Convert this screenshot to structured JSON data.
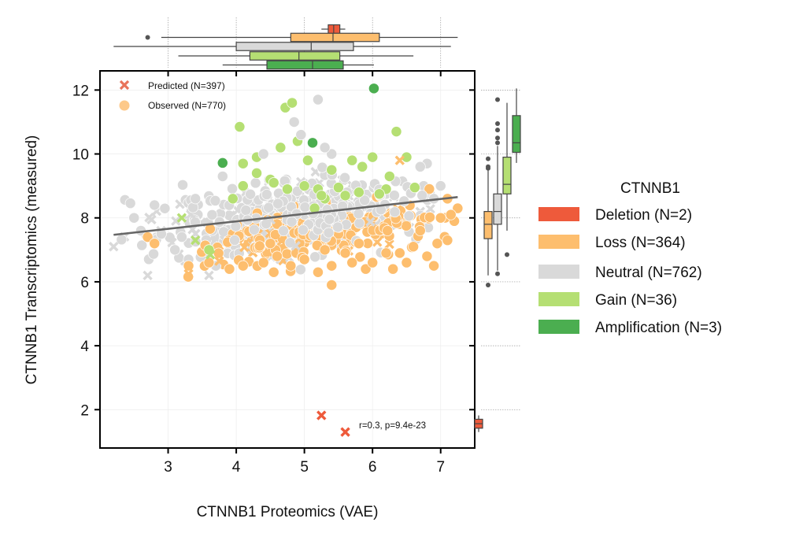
{
  "chart_data": {
    "type": "scatter",
    "xlabel": "CTNNB1 Proteomics (VAE)",
    "ylabel": "CTNNB1 Transcriptomics (measured)",
    "xlim": [
      2.0,
      7.5
    ],
    "ylim": [
      0.8,
      12.6
    ],
    "x_ticks": [
      "3",
      "4",
      "5",
      "6",
      "7"
    ],
    "y_ticks": [
      "2",
      "4",
      "6",
      "8",
      "10",
      "12"
    ],
    "grid": true,
    "scatter_legend": {
      "placement": "top-left",
      "entries": [
        {
          "label": "Predicted (N=397)",
          "marker": "x"
        },
        {
          "label": "Observed (N=770)",
          "marker": "circle"
        }
      ]
    },
    "annotation": "r=0.3, p=9.4e-23",
    "regression_line": {
      "x": [
        2.2,
        7.25
      ],
      "y": [
        7.47,
        8.65
      ],
      "color": "#666666"
    },
    "category_legend": {
      "title": "CTNNB1",
      "placement": "right",
      "entries": [
        {
          "label": "Deletion (N=2)",
          "color": "#EE5A3B"
        },
        {
          "label": "Loss (N=364)",
          "color": "#FDBE6E"
        },
        {
          "label": "Neutral (N=762)",
          "color": "#D9D9D9"
        },
        {
          "label": "Gain (N=36)",
          "color": "#B5DF73"
        },
        {
          "label": "Amplification (N=3)",
          "color": "#4BAE50"
        }
      ]
    },
    "categories": [
      "Deletion",
      "Loss",
      "Neutral",
      "Gain",
      "Amplification"
    ],
    "colors": {
      "Deletion": "#EE5A3B",
      "Loss": "#FDBE6E",
      "Neutral": "#D9D9D9",
      "Gain": "#B5DF73",
      "Amplification": "#4BAE50"
    },
    "series": [
      {
        "category": "Amplification",
        "points": [
          [
            3.8,
            9.72
          ],
          [
            5.12,
            10.35
          ],
          [
            6.02,
            12.05
          ]
        ]
      },
      {
        "category": "Gain",
        "points": [
          [
            4.05,
            10.85
          ],
          [
            4.72,
            11.45
          ],
          [
            4.82,
            11.6
          ],
          [
            4.65,
            10.2
          ],
          [
            4.9,
            10.4
          ],
          [
            5.05,
            9.8
          ],
          [
            4.3,
            9.9
          ],
          [
            4.1,
            9.7
          ],
          [
            4.5,
            9.2
          ],
          [
            4.55,
            9.1
          ],
          [
            4.1,
            9.0
          ],
          [
            5.0,
            9.0
          ],
          [
            5.2,
            8.9
          ],
          [
            5.3,
            8.6
          ],
          [
            5.6,
            8.7
          ],
          [
            5.8,
            8.8
          ],
          [
            6.0,
            9.9
          ],
          [
            6.2,
            8.9
          ],
          [
            6.35,
            10.7
          ],
          [
            6.5,
            9.9
          ],
          [
            5.4,
            9.5
          ],
          [
            5.7,
            9.8
          ],
          [
            5.15,
            8.3
          ],
          [
            5.5,
            8.95
          ],
          [
            5.85,
            9.6
          ],
          [
            6.1,
            8.75
          ],
          [
            6.25,
            9.3
          ],
          [
            6.62,
            8.95
          ],
          [
            4.75,
            8.9
          ],
          [
            4.3,
            9.4
          ],
          [
            5.25,
            8.7
          ],
          [
            3.95,
            8.6
          ],
          [
            3.6,
            7.0
          ]
        ]
      },
      {
        "category": "Neutral",
        "points": [
          [
            5.2,
            11.7
          ],
          [
            4.85,
            11.0
          ],
          [
            4.95,
            10.6
          ],
          [
            5.4,
            10.0
          ],
          [
            5.3,
            10.2
          ],
          [
            4.4,
            10.0
          ],
          [
            3.8,
            9.3
          ],
          [
            3.4,
            8.6
          ],
          [
            2.8,
            8.4
          ],
          [
            2.9,
            7.5
          ],
          [
            3.1,
            7.0
          ],
          [
            3.3,
            6.7
          ],
          [
            3.7,
            6.5
          ],
          [
            2.5,
            8.0
          ],
          [
            2.6,
            7.6
          ],
          [
            6.8,
            9.7
          ],
          [
            7.0,
            9.0
          ],
          [
            6.9,
            8.6
          ],
          [
            6.7,
            9.6
          ]
        ]
      },
      {
        "category": "Loss",
        "points": [
          [
            2.7,
            7.4
          ],
          [
            2.8,
            7.2
          ],
          [
            3.3,
            6.5
          ],
          [
            3.6,
            6.6
          ],
          [
            3.9,
            6.4
          ],
          [
            4.1,
            6.5
          ],
          [
            4.4,
            6.6
          ],
          [
            4.6,
            6.8
          ],
          [
            4.55,
            6.3
          ],
          [
            4.8,
            6.5
          ],
          [
            5.0,
            6.7
          ],
          [
            5.2,
            6.3
          ],
          [
            5.4,
            5.9
          ],
          [
            5.4,
            6.5
          ],
          [
            5.6,
            6.9
          ],
          [
            5.7,
            6.6
          ],
          [
            5.9,
            6.4
          ],
          [
            6.0,
            6.6
          ],
          [
            6.2,
            6.9
          ],
          [
            6.3,
            6.4
          ],
          [
            6.4,
            6.9
          ],
          [
            6.5,
            6.6
          ],
          [
            6.6,
            7.1
          ],
          [
            6.8,
            6.8
          ],
          [
            6.9,
            6.5
          ],
          [
            6.95,
            7.2
          ],
          [
            7.1,
            7.3
          ],
          [
            7.2,
            7.9
          ],
          [
            7.25,
            8.3
          ],
          [
            7.0,
            8.0
          ],
          [
            7.1,
            8.6
          ],
          [
            7.15,
            8.1
          ],
          [
            6.7,
            7.6
          ],
          [
            5.3,
            7.0
          ],
          [
            5.8,
            7.2
          ],
          [
            4.5,
            7.2
          ]
        ]
      },
      {
        "category": "Deletion",
        "points": [
          [
            5.25,
            1.82
          ],
          [
            5.6,
            1.3
          ]
        ]
      }
    ],
    "marginal_boxplots": {
      "x": [
        {
          "category": "Deletion",
          "q1": 5.35,
          "median": 5.43,
          "q3": 5.52,
          "whisker_low": 5.25,
          "whisker_high": 5.6,
          "outliers": []
        },
        {
          "category": "Loss",
          "q1": 4.8,
          "median": 5.42,
          "q3": 6.1,
          "whisker_low": 2.9,
          "whisker_high": 7.25,
          "outliers": [
            2.7
          ]
        },
        {
          "category": "Neutral",
          "q1": 4.0,
          "median": 5.1,
          "q3": 5.72,
          "whisker_low": 2.2,
          "whisker_high": 7.15,
          "outliers": []
        },
        {
          "category": "Gain",
          "q1": 4.2,
          "median": 4.92,
          "q3": 5.52,
          "whisker_low": 3.15,
          "whisker_high": 6.6,
          "outliers": []
        },
        {
          "category": "Amplification",
          "q1": 4.45,
          "median": 5.12,
          "q3": 5.57,
          "whisker_low": 3.8,
          "whisker_high": 6.02,
          "outliers": []
        }
      ],
      "y": [
        {
          "category": "Deletion",
          "q1": 1.42,
          "median": 1.56,
          "q3": 1.7,
          "whisker_low": 1.3,
          "whisker_high": 1.82,
          "outliers": []
        },
        {
          "category": "Loss",
          "q1": 7.35,
          "median": 7.8,
          "q3": 8.2,
          "whisker_low": 6.2,
          "whisker_high": 9.5,
          "outliers": [
            5.9,
            9.55,
            9.6,
            9.85
          ]
        },
        {
          "category": "Neutral",
          "q1": 7.8,
          "median": 8.2,
          "q3": 8.75,
          "whisker_low": 6.35,
          "whisker_high": 10.25,
          "outliers": [
            6.25,
            10.35,
            10.5,
            10.75,
            10.95,
            11.7
          ]
        },
        {
          "category": "Gain",
          "q1": 8.75,
          "median": 9.05,
          "q3": 9.9,
          "whisker_low": 7.6,
          "whisker_high": 11.6,
          "outliers": [
            6.85
          ]
        },
        {
          "category": "Amplification",
          "q1": 10.05,
          "median": 10.35,
          "q3": 11.2,
          "whisker_low": 9.72,
          "whisker_high": 12.05,
          "outliers": []
        }
      ]
    }
  }
}
